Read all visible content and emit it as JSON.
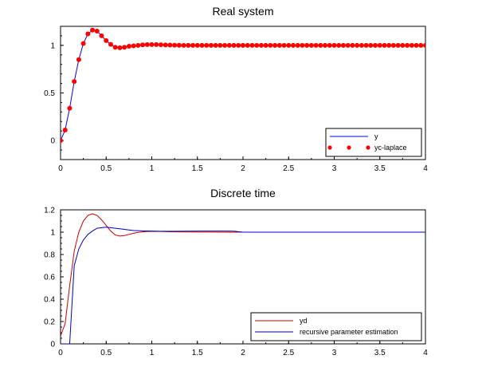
{
  "chart_data": [
    {
      "type": "line",
      "title": "Real system",
      "xlim": [
        0,
        4
      ],
      "ylim": [
        -0.2,
        1.2
      ],
      "x_ticks": [
        "0",
        "0.5",
        "1",
        "1.5",
        "2",
        "2.5",
        "3",
        "3.5",
        "4"
      ],
      "y_ticks": [
        "0",
        "0.5",
        "1"
      ],
      "y_tick_values": [
        0,
        0.5,
        1
      ],
      "legend": "bottom-right",
      "series": [
        {
          "name": "y",
          "style": "line",
          "color": "#0000ff",
          "x": [
            0,
            0.05,
            0.1,
            0.15,
            0.2,
            0.25,
            0.3,
            0.35,
            0.4,
            0.45,
            0.5,
            0.55,
            0.6,
            0.65,
            0.7,
            0.75,
            0.8,
            0.85,
            0.9,
            0.95,
            1.0,
            1.1,
            1.2,
            1.3,
            1.4,
            1.5,
            1.6,
            1.8,
            2.0,
            2.5,
            3.0,
            3.5,
            4.0
          ],
          "y": [
            0,
            0.11,
            0.34,
            0.62,
            0.85,
            1.02,
            1.12,
            1.16,
            1.15,
            1.1,
            1.05,
            1.01,
            0.98,
            0.975,
            0.98,
            0.99,
            0.995,
            1.0,
            1.005,
            1.008,
            1.008,
            1.006,
            1.003,
            1.001,
            1.0,
            1.0,
            1.0,
            1.0,
            1.0,
            1.0,
            1.0,
            1.0,
            1.0
          ]
        },
        {
          "name": "yc-laplace",
          "style": "markers",
          "color": "#ff0000",
          "x": [
            0,
            0.05,
            0.1,
            0.15,
            0.2,
            0.25,
            0.3,
            0.35,
            0.4,
            0.45,
            0.5,
            0.55,
            0.6,
            0.65,
            0.7,
            0.75,
            0.8,
            0.85,
            0.9,
            0.95,
            1.0,
            1.05,
            1.1,
            1.15,
            1.2,
            1.25,
            1.3,
            1.35,
            1.4,
            1.45,
            1.5,
            1.55,
            1.6,
            1.65,
            1.7,
            1.75,
            1.8,
            1.85,
            1.9,
            1.95,
            2.0,
            2.05,
            2.1,
            2.15,
            2.2,
            2.25,
            2.3,
            2.35,
            2.4,
            2.45,
            2.5,
            2.55,
            2.6,
            2.65,
            2.7,
            2.75,
            2.8,
            2.85,
            2.9,
            2.95,
            3.0,
            3.05,
            3.1,
            3.15,
            3.2,
            3.25,
            3.3,
            3.35,
            3.4,
            3.45,
            3.5,
            3.55,
            3.6,
            3.65,
            3.7,
            3.75,
            3.8,
            3.85,
            3.9,
            3.95,
            4.0
          ],
          "y": [
            0,
            0.11,
            0.34,
            0.62,
            0.85,
            1.02,
            1.12,
            1.16,
            1.15,
            1.1,
            1.05,
            1.01,
            0.98,
            0.975,
            0.98,
            0.99,
            0.995,
            1.0,
            1.005,
            1.008,
            1.008,
            1.008,
            1.006,
            1.004,
            1.003,
            1.002,
            1.001,
            1.0,
            1.0,
            1.0,
            1.0,
            1.0,
            1.0,
            1.0,
            1.0,
            1.0,
            1.0,
            1.0,
            1.0,
            1.0,
            1.0,
            1.0,
            1.0,
            1.0,
            1.0,
            1.0,
            1.0,
            1.0,
            1.0,
            1.0,
            1.0,
            1.0,
            1.0,
            1.0,
            1.0,
            1.0,
            1.0,
            1.0,
            1.0,
            1.0,
            1.0,
            1.0,
            1.0,
            1.0,
            1.0,
            1.0,
            1.0,
            1.0,
            1.0,
            1.0,
            1.0,
            1.0,
            1.0,
            1.0,
            1.0,
            1.0,
            1.0,
            1.0,
            1.0,
            1.0,
            1.0
          ]
        }
      ]
    },
    {
      "type": "line",
      "title": "Discrete time",
      "xlim": [
        0,
        4
      ],
      "ylim": [
        0,
        1.2
      ],
      "x_ticks": [
        "0",
        "0.5",
        "1",
        "1.5",
        "2",
        "2.5",
        "3",
        "3.5",
        "4"
      ],
      "y_ticks": [
        "0",
        "0.2",
        "0.4",
        "0.6",
        "0.8",
        "1",
        "1.2"
      ],
      "y_tick_values": [
        0,
        0.2,
        0.4,
        0.6,
        0.8,
        1.0,
        1.2
      ],
      "legend": "bottom-right",
      "series": [
        {
          "name": "yd",
          "style": "line",
          "color": "#cc0000",
          "x": [
            0,
            0.05,
            0.1,
            0.15,
            0.2,
            0.25,
            0.3,
            0.35,
            0.4,
            0.45,
            0.5,
            0.55,
            0.6,
            0.65,
            0.7,
            0.75,
            0.8,
            0.85,
            0.9,
            0.95,
            1.0,
            1.1,
            1.2,
            1.4,
            1.6,
            1.8,
            1.9,
            2.0,
            2.5,
            3.0,
            3.5,
            4.0
          ],
          "y": [
            0.07,
            0.18,
            0.52,
            0.83,
            1.0,
            1.1,
            1.15,
            1.165,
            1.15,
            1.11,
            1.06,
            1.01,
            0.975,
            0.965,
            0.97,
            0.98,
            0.99,
            0.998,
            1.003,
            1.006,
            1.007,
            1.006,
            1.004,
            1.002,
            1.001,
            1.0,
            1.0,
            1.0,
            1.0,
            1.0,
            1.0,
            1.0
          ]
        },
        {
          "name": "recursive parameter estimation",
          "style": "line",
          "color": "#0000cc",
          "x": [
            0,
            0.05,
            0.1,
            0.15,
            0.2,
            0.25,
            0.3,
            0.35,
            0.4,
            0.45,
            0.5,
            0.55,
            0.6,
            0.65,
            0.7,
            0.75,
            0.8,
            0.9,
            1.0,
            1.1,
            1.2,
            1.4,
            1.6,
            1.8,
            1.9,
            2.0,
            2.5,
            3.0,
            3.5,
            4.0
          ],
          "y": [
            0,
            0,
            0,
            0.7,
            0.85,
            0.93,
            0.98,
            1.01,
            1.035,
            1.04,
            1.045,
            1.04,
            1.035,
            1.03,
            1.025,
            1.02,
            1.015,
            1.012,
            1.01,
            1.008,
            1.008,
            1.009,
            1.01,
            1.01,
            1.009,
            1.0,
            1.0,
            1.0,
            1.0,
            1.0
          ]
        }
      ]
    }
  ]
}
